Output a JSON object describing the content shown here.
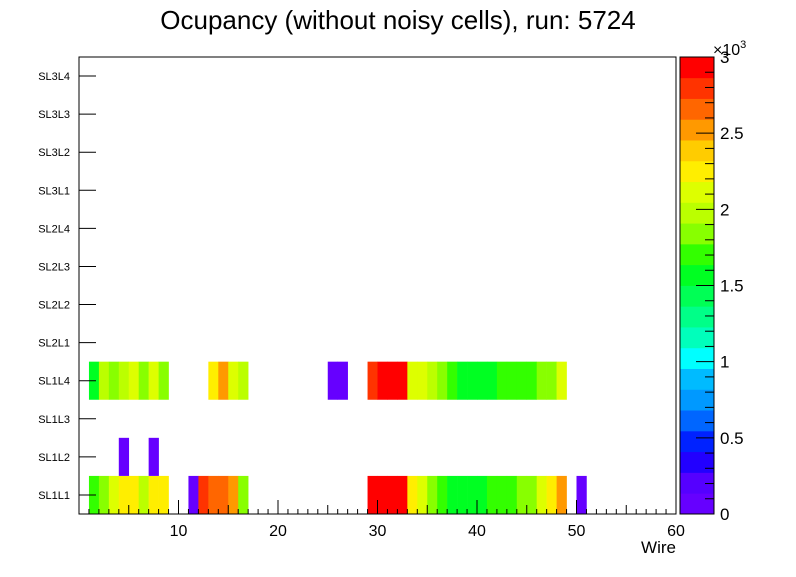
{
  "chart_data": {
    "type": "heatmap",
    "title": "Ocupancy (without noisy cells), run: 5724",
    "xlabel": "Wire",
    "ylabel": "",
    "xlim": [
      0,
      60
    ],
    "x_ticks": [
      10,
      20,
      30,
      40,
      50,
      60
    ],
    "y_categories": [
      "SL1L1",
      "SL1L2",
      "SL1L3",
      "SL1L4",
      "SL2L1",
      "SL2L2",
      "SL2L3",
      "SL2L4",
      "SL3L1",
      "SL3L2",
      "SL3L3",
      "SL3L4"
    ],
    "z_range": [
      0,
      3000
    ],
    "colorbar_ticks": [
      0,
      0.5,
      1,
      1.5,
      2,
      2.5,
      3
    ],
    "colorbar_exponent_label": "×10",
    "colorbar_exponent_power": "3",
    "palette": [
      "#6600ff",
      "#5500ff",
      "#2200ff",
      "#0022ff",
      "#0066ff",
      "#0099ff",
      "#00bbff",
      "#00ffff",
      "#00ffbb",
      "#00ff88",
      "#00ff55",
      "#00ff22",
      "#33ff00",
      "#88ff00",
      "#bbff00",
      "#ddff00",
      "#ffee00",
      "#ffcc00",
      "#ff9900",
      "#ff6600",
      "#ff3300",
      "#ff0000"
    ],
    "rows": [
      {
        "layer": "SL1L1",
        "cells": [
          [
            1,
            1700
          ],
          [
            2,
            1900
          ],
          [
            3,
            2150
          ],
          [
            4,
            2200
          ],
          [
            5,
            2250
          ],
          [
            6,
            2000
          ],
          [
            7,
            2200
          ],
          [
            8,
            2200
          ],
          [
            11,
            100
          ],
          [
            12,
            2800
          ],
          [
            13,
            2600
          ],
          [
            14,
            2600
          ],
          [
            15,
            2550
          ],
          [
            16,
            1900
          ],
          [
            29,
            3000
          ],
          [
            30,
            3000
          ],
          [
            31,
            3000
          ],
          [
            32,
            3000
          ],
          [
            33,
            2250
          ],
          [
            34,
            2150
          ],
          [
            35,
            1900
          ],
          [
            36,
            1750
          ],
          [
            37,
            1600
          ],
          [
            38,
            1500
          ],
          [
            39,
            1500
          ],
          [
            40,
            1600
          ],
          [
            41,
            1650
          ],
          [
            42,
            1700
          ],
          [
            43,
            1750
          ],
          [
            44,
            1800
          ],
          [
            45,
            1900
          ],
          [
            46,
            2100
          ],
          [
            47,
            2200
          ],
          [
            48,
            2500
          ],
          [
            50,
            100
          ]
        ]
      },
      {
        "layer": "SL1L2",
        "cells": [
          [
            4,
            100
          ],
          [
            7,
            100
          ]
        ]
      },
      {
        "layer": "SL1L4",
        "cells": [
          [
            1,
            1600
          ],
          [
            2,
            2000
          ],
          [
            3,
            1900
          ],
          [
            4,
            2000
          ],
          [
            5,
            2150
          ],
          [
            6,
            1900
          ],
          [
            7,
            2050
          ],
          [
            8,
            1900
          ],
          [
            13,
            2200
          ],
          [
            14,
            2550
          ],
          [
            15,
            2100
          ],
          [
            16,
            1950
          ],
          [
            25,
            100
          ],
          [
            26,
            100
          ],
          [
            29,
            2800
          ],
          [
            30,
            2900
          ],
          [
            31,
            2900
          ],
          [
            32,
            2900
          ],
          [
            33,
            2150
          ],
          [
            34,
            2050
          ],
          [
            35,
            1950
          ],
          [
            36,
            1900
          ],
          [
            37,
            1700
          ],
          [
            38,
            1600
          ],
          [
            39,
            1550
          ],
          [
            40,
            1550
          ],
          [
            41,
            1550
          ],
          [
            42,
            1750
          ],
          [
            43,
            1650
          ],
          [
            44,
            1650
          ],
          [
            45,
            1750
          ],
          [
            46,
            1800
          ],
          [
            47,
            1900
          ],
          [
            48,
            2100
          ]
        ]
      }
    ]
  }
}
